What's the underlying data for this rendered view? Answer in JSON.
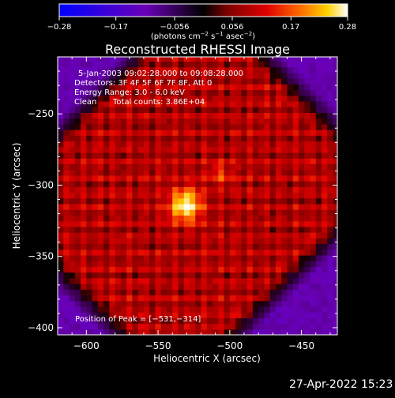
{
  "chart_data": {
    "type": "heatmap",
    "title": "Reconstructed RHESSI Image",
    "xlabel": "Heliocentric X (arcsec)",
    "ylabel": "Heliocentric Y (arcsec)",
    "xlim": [
      -620,
      -425
    ],
    "ylim": [
      -405,
      -210
    ],
    "x_ticks": [
      -600,
      -550,
      -500,
      -450
    ],
    "y_ticks": [
      -400,
      -350,
      -300,
      -250
    ],
    "x_tick_labels": [
      "−600",
      "−550",
      "−500",
      "−450"
    ],
    "y_tick_labels": [
      "−400",
      "−350",
      "−300",
      "−250"
    ],
    "colorbar": {
      "min": -0.28,
      "max": 0.28,
      "ticks": [
        -0.28,
        -0.17,
        -0.056,
        0.056,
        0.17,
        0.28
      ],
      "tick_labels": [
        "−0.28",
        "−0.17",
        "−0.056",
        "0.056",
        "0.17",
        "0.28"
      ],
      "unit_label": {
        "main": "(photons cm",
        "exp1": "−2",
        "mid": " s",
        "exp2": "−1",
        "mid2": " asec",
        "exp3": "−2",
        "end": ")"
      },
      "colors": [
        "#0000ff",
        "#7a00b0",
        "#000000",
        "#8b0000",
        "#e00000",
        "#ff7a00",
        "#ffd000",
        "#ffffff"
      ]
    },
    "annotations": {
      "time_range": "5-Jan-2003 09:02:28.000 to 09:08:28.000",
      "detectors": "Detectors: 3F 4F 5F 6F 7F 8F, Att 0",
      "energy_range": "Energy Range: 3.0 - 6.0 keV",
      "method": "Clean",
      "total_counts": "Total counts: 3.86E+04",
      "peak": "Position of Peak = [−531,−314]"
    },
    "peak": {
      "x": -531,
      "y": -314
    },
    "background_level": -0.1
  },
  "footer": {
    "date": "27-Apr-2022 15:23"
  }
}
